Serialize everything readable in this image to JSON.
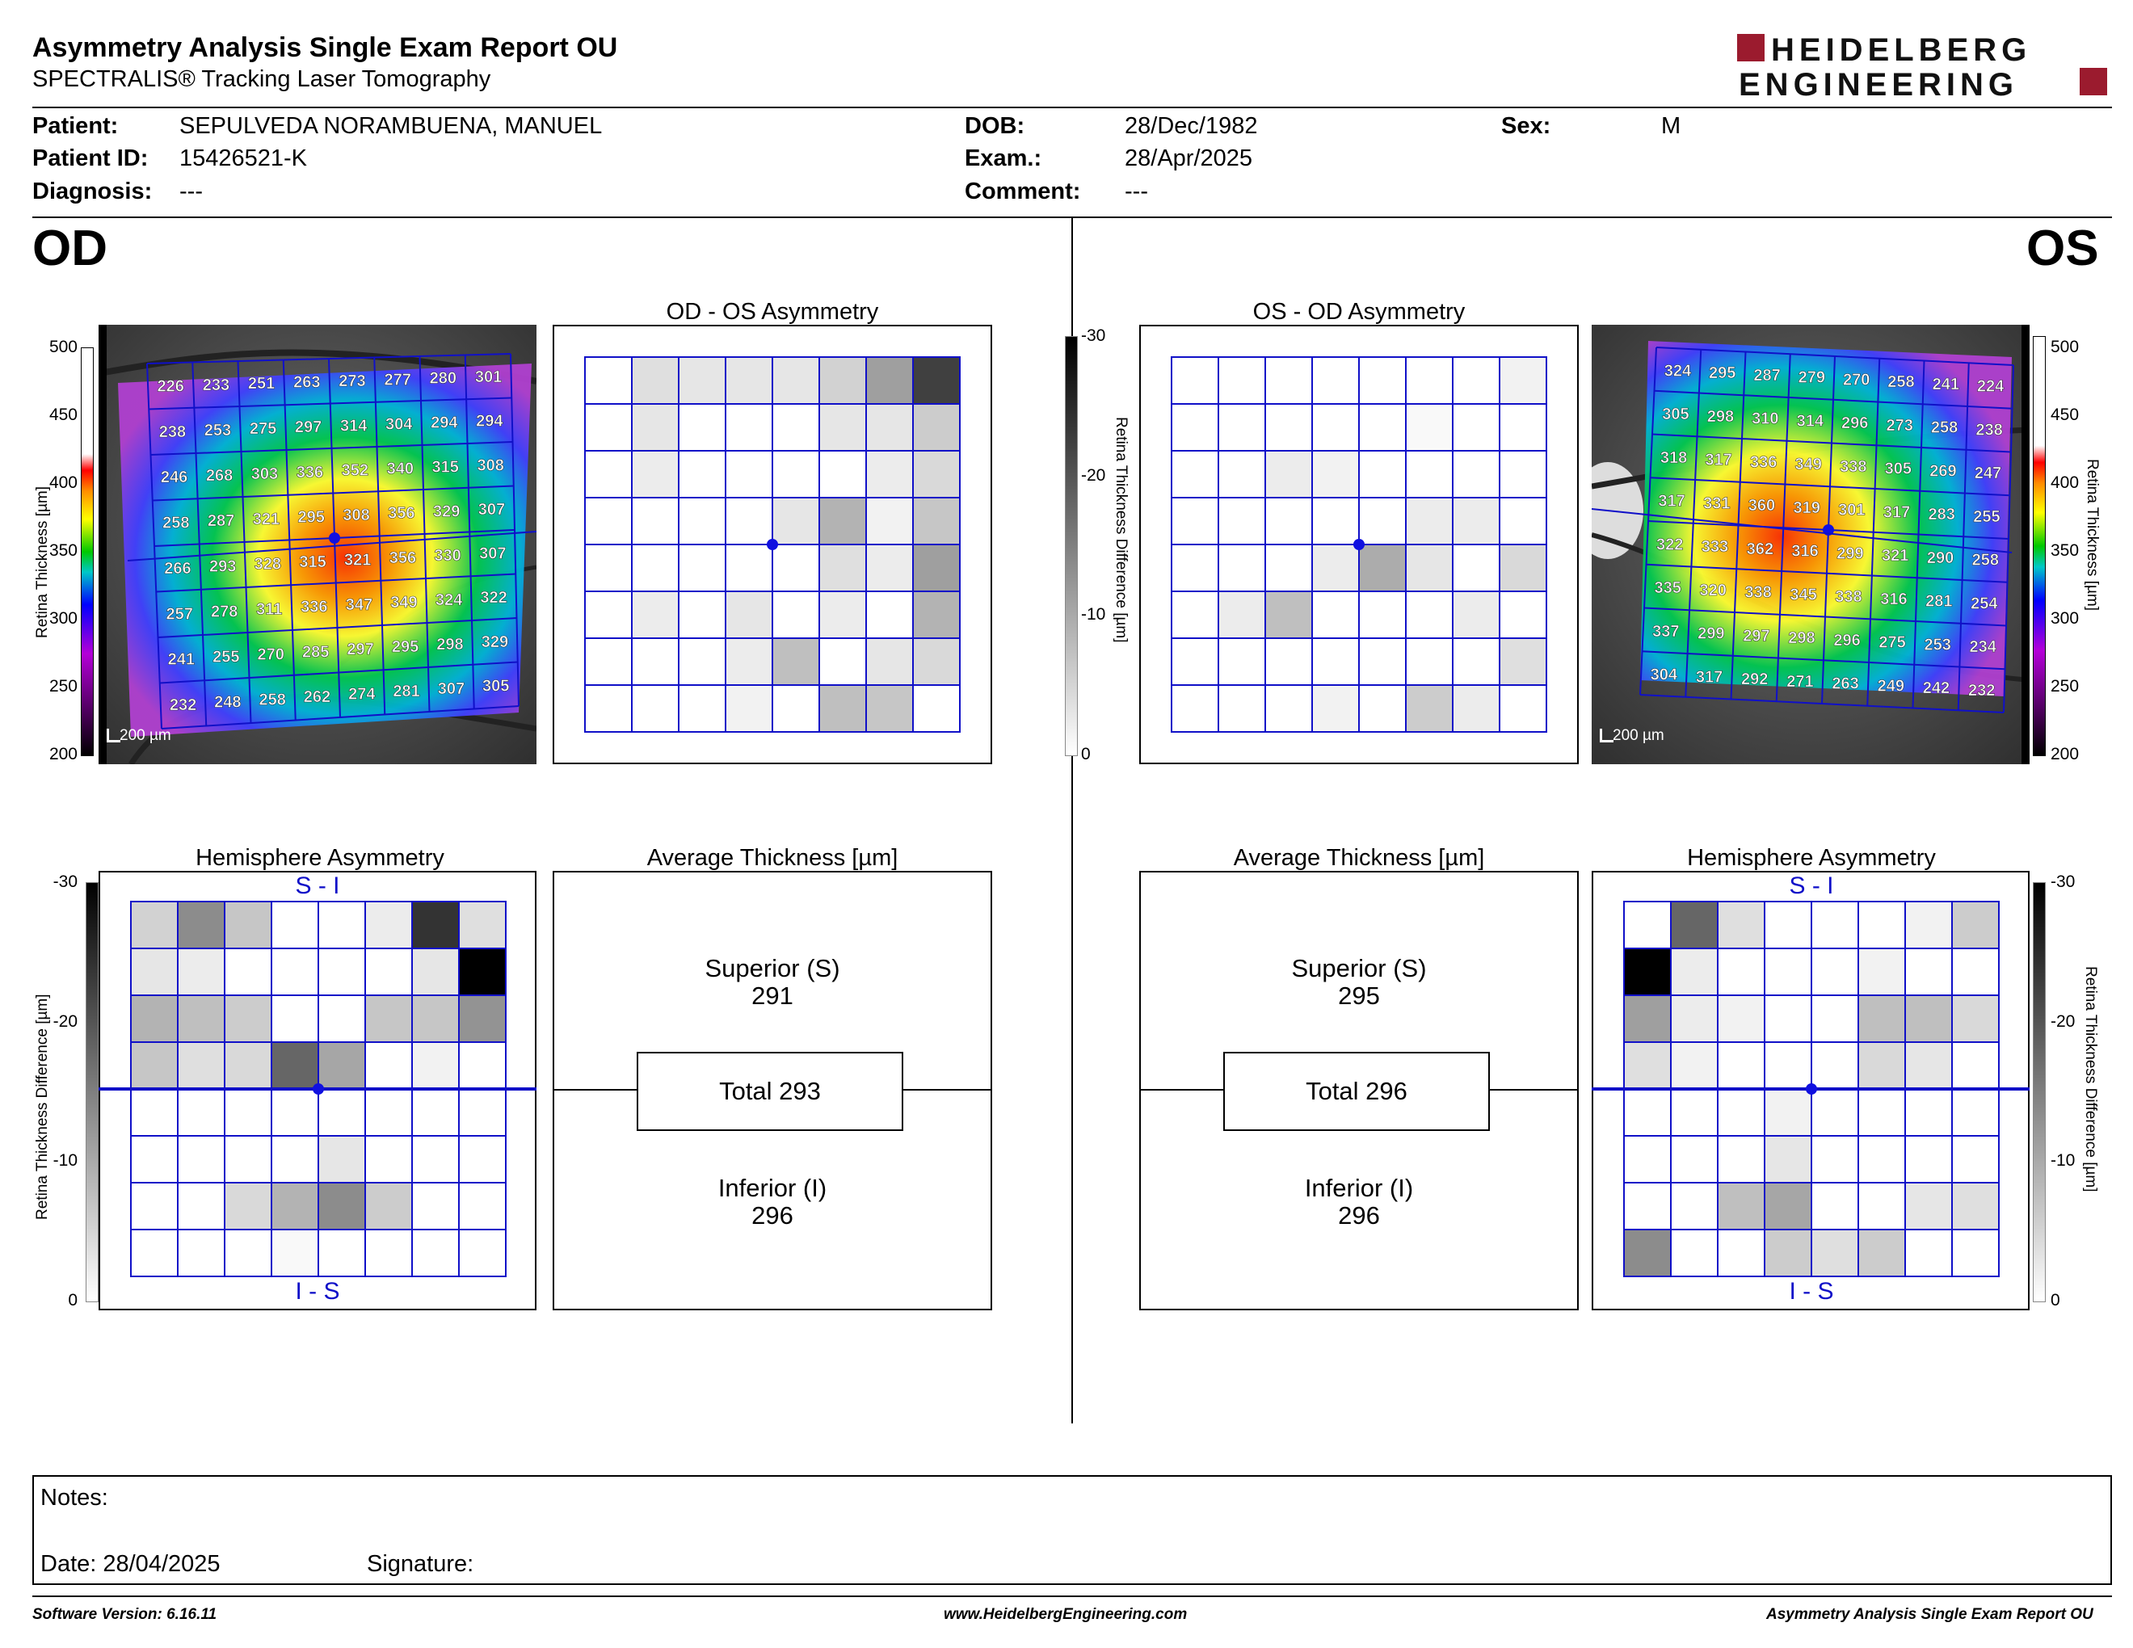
{
  "header": {
    "title": "Asymmetry Analysis Single Exam Report OU",
    "subtitle": "SPECTRALIS® Tracking Laser Tomography",
    "logo_line1": "HEIDELBERG",
    "logo_line2": "ENGINEERING"
  },
  "patient": {
    "patient_label": "Patient:",
    "patient_value": "SEPULVEDA NORAMBUENA, MANUEL",
    "id_label": "Patient ID:",
    "id_value": "15426521-K",
    "diagnosis_label": "Diagnosis:",
    "diagnosis_value": "---",
    "dob_label": "DOB:",
    "dob_value": "28/Dec/1982",
    "exam_label": "Exam.:",
    "exam_value": "28/Apr/2025",
    "comment_label": "Comment:",
    "comment_value": "---",
    "sex_label": "Sex:",
    "sex_value": "M"
  },
  "eyes": {
    "od": "OD",
    "os": "OS"
  },
  "titles": {
    "od_os_asym": "OD - OS Asymmetry",
    "os_od_asym": "OS - OD Asymmetry",
    "hemisphere": "Hemisphere Asymmetry",
    "avg_thickness": "Average Thickness [µm]"
  },
  "scales": {
    "retina_thickness_label": "Retina  Thickness [µm]",
    "retina_thickness_ticks": [
      "500",
      "450",
      "400",
      "350",
      "300",
      "250",
      "200"
    ],
    "difference_label": "Retina Thickness Difference [µm]",
    "difference_ticks": [
      "-30",
      "-20",
      "-10",
      "0"
    ],
    "scale_bar": "200 µm"
  },
  "hemisphere_labels": {
    "top": "S - I",
    "bottom": "I - S"
  },
  "od": {
    "thickness_grid": [
      [
        226,
        233,
        251,
        263,
        273,
        277,
        280,
        301
      ],
      [
        238,
        253,
        275,
        297,
        314,
        304,
        294,
        294
      ],
      [
        246,
        268,
        303,
        336,
        352,
        340,
        315,
        308
      ],
      [
        258,
        287,
        321,
        295,
        308,
        356,
        329,
        307
      ],
      [
        266,
        293,
        328,
        315,
        321,
        356,
        330,
        307
      ],
      [
        257,
        278,
        311,
        336,
        347,
        349,
        324,
        322
      ],
      [
        241,
        255,
        270,
        285,
        297,
        295,
        298,
        329
      ],
      [
        232,
        248,
        258,
        262,
        274,
        281,
        307,
        305
      ]
    ],
    "asymmetry_grid": [
      [
        0,
        5,
        4,
        4,
        4,
        7,
        15,
        30
      ],
      [
        0,
        4,
        0,
        0,
        0,
        4,
        4,
        8
      ],
      [
        0,
        3,
        0,
        0,
        0,
        0,
        3,
        6
      ],
      [
        0,
        0,
        0,
        0,
        4,
        12,
        2,
        9
      ],
      [
        0,
        0,
        0,
        0,
        0,
        5,
        3,
        15
      ],
      [
        0,
        3,
        0,
        4,
        0,
        3,
        0,
        12
      ],
      [
        0,
        0,
        0,
        3,
        10,
        0,
        4,
        6
      ],
      [
        0,
        0,
        0,
        2,
        0,
        10,
        9,
        0
      ]
    ],
    "hemisphere_grid": [
      [
        7,
        18,
        9,
        0,
        0,
        3,
        32,
        5
      ],
      [
        4,
        3,
        0,
        0,
        0,
        0,
        4,
        40
      ],
      [
        12,
        10,
        8,
        0,
        0,
        9,
        9,
        17
      ],
      [
        9,
        5,
        6,
        24,
        14,
        0,
        2,
        0
      ],
      [
        0,
        0,
        0,
        0,
        0,
        0,
        0,
        0
      ],
      [
        0,
        0,
        0,
        0,
        4,
        0,
        0,
        0
      ],
      [
        0,
        0,
        6,
        12,
        18,
        8,
        0,
        0
      ],
      [
        0,
        0,
        0,
        1,
        0,
        0,
        0,
        0
      ]
    ],
    "superior_label": "Superior (S)",
    "superior_value": "291",
    "total_label": "Total 293",
    "inferior_label": "Inferior (I)",
    "inferior_value": "296"
  },
  "os": {
    "thickness_grid": [
      [
        324,
        295,
        287,
        279,
        270,
        258,
        241,
        224
      ],
      [
        305,
        298,
        310,
        314,
        296,
        273,
        258,
        238
      ],
      [
        318,
        317,
        336,
        349,
        338,
        305,
        269,
        247
      ],
      [
        317,
        331,
        360,
        319,
        301,
        317,
        283,
        255
      ],
      [
        322,
        333,
        362,
        316,
        299,
        321,
        290,
        258
      ],
      [
        335,
        320,
        338,
        345,
        338,
        316,
        281,
        254
      ],
      [
        337,
        299,
        297,
        298,
        296,
        275,
        253,
        234
      ],
      [
        304,
        317,
        292,
        271,
        263,
        249,
        242,
        232
      ]
    ],
    "asymmetry_grid": [
      [
        0,
        0,
        0,
        0,
        0,
        0,
        0,
        2
      ],
      [
        0,
        0,
        0,
        0,
        0,
        1,
        0,
        0
      ],
      [
        0,
        0,
        3,
        2,
        0,
        0,
        0,
        0
      ],
      [
        0,
        0,
        0,
        0,
        0,
        3,
        3,
        0
      ],
      [
        0,
        0,
        0,
        3,
        13,
        4,
        0,
        6
      ],
      [
        0,
        3,
        10,
        0,
        0,
        0,
        3,
        0
      ],
      [
        0,
        0,
        0,
        0,
        0,
        0,
        0,
        5
      ],
      [
        0,
        0,
        0,
        2,
        0,
        8,
        3,
        0
      ]
    ],
    "hemisphere_grid": [
      [
        0,
        24,
        5,
        0,
        0,
        0,
        2,
        8
      ],
      [
        40,
        3,
        0,
        0,
        0,
        2,
        0,
        0
      ],
      [
        15,
        3,
        2,
        0,
        0,
        10,
        10,
        6
      ],
      [
        5,
        2,
        0,
        0,
        0,
        6,
        4,
        0
      ],
      [
        0,
        0,
        0,
        2,
        0,
        0,
        0,
        0
      ],
      [
        0,
        0,
        0,
        4,
        0,
        0,
        0,
        0
      ],
      [
        0,
        0,
        10,
        14,
        0,
        0,
        4,
        5
      ],
      [
        18,
        0,
        0,
        8,
        5,
        8,
        0,
        0
      ]
    ],
    "superior_label": "Superior (S)",
    "superior_value": "295",
    "total_label": "Total 296",
    "inferior_label": "Inferior (I)",
    "inferior_value": "296"
  },
  "notes": {
    "notes_label": "Notes:",
    "date_label": "Date: 28/04/2025",
    "signature_label": "Signature:"
  },
  "footer": {
    "software": "Software Version: 6.16.11",
    "website": "www.HeidelbergEngineering.com",
    "report": "Asymmetry Analysis Single Exam Report OU"
  }
}
